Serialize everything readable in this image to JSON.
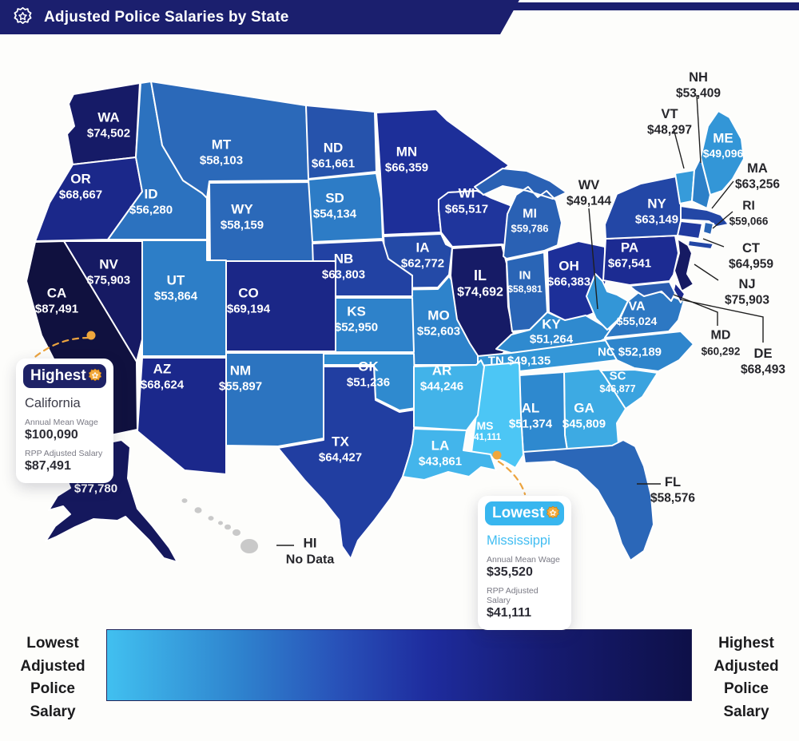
{
  "header": {
    "title": "Adjusted Police Salaries by State",
    "icon": "police-badge-icon"
  },
  "chart_data": {
    "type": "choropleth_map",
    "title": "Adjusted Police Salaries by State",
    "value_label": "RPP Adjusted Police Salary (USD)",
    "min_value": 41111,
    "max_value": 87491,
    "color_scale": {
      "low": "#4cc6f5",
      "high": "#10113f"
    },
    "no_data_color": "#c9c9c9",
    "states": [
      {
        "code": "WA",
        "value": 74502,
        "display": "$74,502"
      },
      {
        "code": "OR",
        "value": 68667,
        "display": "$68,667"
      },
      {
        "code": "CA",
        "value": 87491,
        "display": "$87,491"
      },
      {
        "code": "NV",
        "value": 75903,
        "display": "$75,903"
      },
      {
        "code": "ID",
        "value": 56280,
        "display": "$56,280"
      },
      {
        "code": "MT",
        "value": 58103,
        "display": "$58,103"
      },
      {
        "code": "WY",
        "value": 58159,
        "display": "$58,159"
      },
      {
        "code": "UT",
        "value": 53864,
        "display": "$53,864"
      },
      {
        "code": "CO",
        "value": 69194,
        "display": "$69,194"
      },
      {
        "code": "AZ",
        "value": 68624,
        "display": "$68,624"
      },
      {
        "code": "NM",
        "value": 55897,
        "display": "$55,897"
      },
      {
        "code": "ND",
        "value": 61661,
        "display": "$61,661"
      },
      {
        "code": "SD",
        "value": 54134,
        "display": "$54,134"
      },
      {
        "code": "NB",
        "value": 63803,
        "display": "$63,803"
      },
      {
        "code": "KS",
        "value": 52950,
        "display": "$52,950"
      },
      {
        "code": "OK",
        "value": 51236,
        "display": "$51,236"
      },
      {
        "code": "TX",
        "value": 64427,
        "display": "$64,427"
      },
      {
        "code": "MN",
        "value": 66359,
        "display": "$66,359"
      },
      {
        "code": "IA",
        "value": 62772,
        "display": "$62,772"
      },
      {
        "code": "MO",
        "value": 52603,
        "display": "$52,603"
      },
      {
        "code": "AR",
        "value": 44246,
        "display": "$44,246"
      },
      {
        "code": "LA",
        "value": 43861,
        "display": "$43,861"
      },
      {
        "code": "WI",
        "value": 65517,
        "display": "$65,517"
      },
      {
        "code": "IL",
        "value": 74692,
        "display": "$74,692"
      },
      {
        "code": "MS",
        "value": 41111,
        "display": "$41,111"
      },
      {
        "code": "MI",
        "value": 59786,
        "display": "$59,786"
      },
      {
        "code": "IN",
        "value": 58981,
        "display": "$58,981"
      },
      {
        "code": "OH",
        "value": 66383,
        "display": "$66,383"
      },
      {
        "code": "KY",
        "value": 51264,
        "display": "$51,264"
      },
      {
        "code": "TN",
        "value": 49135,
        "display": "$49,135"
      },
      {
        "code": "AL",
        "value": 51374,
        "display": "$51,374"
      },
      {
        "code": "GA",
        "value": 45809,
        "display": "$45,809"
      },
      {
        "code": "SC",
        "value": 46877,
        "display": "$46,877"
      },
      {
        "code": "NC",
        "value": 52189,
        "display": "$52,189"
      },
      {
        "code": "VA",
        "value": 55024,
        "display": "$55,024"
      },
      {
        "code": "WV",
        "value": 49144,
        "display": "$49,144"
      },
      {
        "code": "FL",
        "value": 58576,
        "display": "$58,576"
      },
      {
        "code": "PA",
        "value": 67541,
        "display": "$67,541"
      },
      {
        "code": "NY",
        "value": 63149,
        "display": "$63,149"
      },
      {
        "code": "ME",
        "value": 49096,
        "display": "$49,096"
      },
      {
        "code": "VT",
        "value": 48297,
        "display": "$48,297"
      },
      {
        "code": "NH",
        "value": 53409,
        "display": "$53,409"
      },
      {
        "code": "MA",
        "value": 63256,
        "display": "$63,256"
      },
      {
        "code": "RI",
        "value": 59066,
        "display": "$59,066"
      },
      {
        "code": "CT",
        "value": 64959,
        "display": "$64,959"
      },
      {
        "code": "NJ",
        "value": 75903,
        "display": "$75,903"
      },
      {
        "code": "MD",
        "value": 60292,
        "display": "$60,292"
      },
      {
        "code": "DE",
        "value": 68493,
        "display": "$68,493"
      },
      {
        "code": "AK",
        "value": 77780,
        "display": "$77,780"
      },
      {
        "code": "HI",
        "value": null,
        "display": "No Data"
      }
    ]
  },
  "callouts": {
    "highest": {
      "title": "Highest",
      "icon": "gold-badge-icon",
      "accent": "#1e2266",
      "state": "California",
      "mean_wage_label": "Annual Mean Wage",
      "mean_wage_value": "$100,090",
      "adjusted_label": "RPP Adjusted Salary",
      "adjusted_value": "$87,491"
    },
    "lowest": {
      "title": "Lowest",
      "icon": "gold-badge-icon",
      "accent": "#38b6ef",
      "state": "Mississippi",
      "mean_wage_label": "Annual Mean Wage",
      "mean_wage_value": "$35,520",
      "adjusted_label": "RPP Adjusted Salary",
      "adjusted_value": "$41,111"
    }
  },
  "legend": {
    "left_label": "Lowest\nAdjusted\nPolice\nSalary",
    "right_label": "Highest\nAdjusted\nPolice\nSalary"
  }
}
